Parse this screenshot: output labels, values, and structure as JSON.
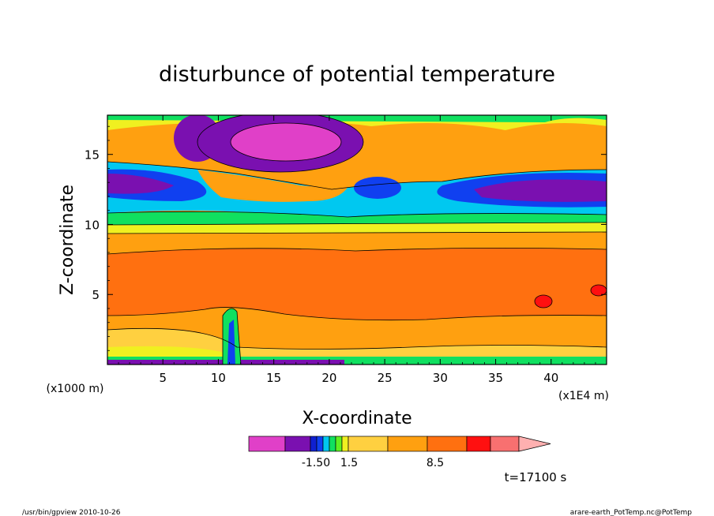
{
  "chart_data": {
    "type": "heatmap",
    "title": "disturbunce of potential temperature",
    "xlabel": "X-coordinate",
    "ylabel": "Z-coordinate",
    "x_unit_left": "(x1000 m)",
    "x_unit_right": "(x1E4 m)",
    "xlim": [
      0,
      45
    ],
    "ylim": [
      0,
      17.8
    ],
    "x_ticks": [
      5,
      10,
      15,
      20,
      25,
      30,
      35,
      40
    ],
    "x_tick_labels": [
      "5",
      "10",
      "15",
      "20",
      "25",
      "30",
      "35",
      "40"
    ],
    "y_ticks": [
      5,
      10,
      15
    ],
    "y_tick_labels": [
      "5",
      "10",
      "15"
    ],
    "colorbar": {
      "colors": [
        "#e040c8",
        "#7a10b0",
        "#1020d0",
        "#1040f0",
        "#00c8f0",
        "#10e060",
        "#60f020",
        "#f0f020",
        "#ffd040",
        "#ffa010",
        "#ff7010",
        "#ff1010",
        "#f87070",
        "#ffb0b0"
      ],
      "labels": [
        "-1.50",
        "1.5",
        "8.5"
      ],
      "label_values": [
        -1.5,
        1.5,
        8.5
      ]
    },
    "time_label": "t=17100 s"
  },
  "footer": {
    "left": "/usr/bin/gpview   2010-10-26",
    "right": "arare-earth_PotTemp.nc@PotTemp"
  }
}
